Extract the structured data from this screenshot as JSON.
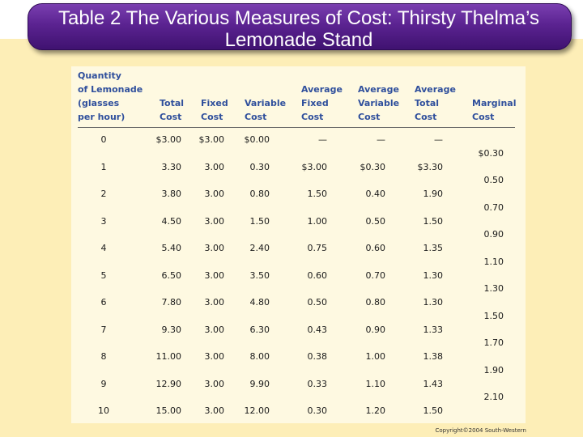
{
  "title": "Table 2 The Various Measures of Cost: Thirsty Thelma’s Lemonade Stand",
  "copyright": "Copyright©2004  South-Western",
  "headers": {
    "quantity": [
      "Quantity",
      "of Lemonade",
      "(glasses",
      "per hour)"
    ],
    "total_cost": [
      "Total",
      "Cost"
    ],
    "fixed_cost": [
      "Fixed",
      "Cost"
    ],
    "variable_cost": [
      "Variable",
      "Cost"
    ],
    "avg_fixed_cost": [
      "Average",
      "Fixed",
      "Cost"
    ],
    "avg_variable_cost": [
      "Average",
      "Variable",
      "Cost"
    ],
    "avg_total_cost": [
      "Average",
      "Total",
      "Cost"
    ],
    "marginal_cost": [
      "Marginal",
      "Cost"
    ]
  },
  "rows": [
    {
      "q": "0",
      "tc": "$3.00",
      "fc": "$3.00",
      "vc": "$0.00",
      "afc": "—",
      "avc": "—",
      "atc": "—"
    },
    {
      "q": "1",
      "tc": "3.30",
      "fc": "3.00",
      "vc": "0.30",
      "afc": "$3.00",
      "avc": "$0.30",
      "atc": "$3.30"
    },
    {
      "q": "2",
      "tc": "3.80",
      "fc": "3.00",
      "vc": "0.80",
      "afc": "1.50",
      "avc": "0.40",
      "atc": "1.90"
    },
    {
      "q": "3",
      "tc": "4.50",
      "fc": "3.00",
      "vc": "1.50",
      "afc": "1.00",
      "avc": "0.50",
      "atc": "1.50"
    },
    {
      "q": "4",
      "tc": "5.40",
      "fc": "3.00",
      "vc": "2.40",
      "afc": "0.75",
      "avc": "0.60",
      "atc": "1.35"
    },
    {
      "q": "5",
      "tc": "6.50",
      "fc": "3.00",
      "vc": "3.50",
      "afc": "0.60",
      "avc": "0.70",
      "atc": "1.30"
    },
    {
      "q": "6",
      "tc": "7.80",
      "fc": "3.00",
      "vc": "4.80",
      "afc": "0.50",
      "avc": "0.80",
      "atc": "1.30"
    },
    {
      "q": "7",
      "tc": "9.30",
      "fc": "3.00",
      "vc": "6.30",
      "afc": "0.43",
      "avc": "0.90",
      "atc": "1.33"
    },
    {
      "q": "8",
      "tc": "11.00",
      "fc": "3.00",
      "vc": "8.00",
      "afc": "0.38",
      "avc": "1.00",
      "atc": "1.38"
    },
    {
      "q": "9",
      "tc": "12.90",
      "fc": "3.00",
      "vc": "9.90",
      "afc": "0.33",
      "avc": "1.10",
      "atc": "1.43"
    },
    {
      "q": "10",
      "tc": "15.00",
      "fc": "3.00",
      "vc": "12.00",
      "afc": "0.30",
      "avc": "1.20",
      "atc": "1.50"
    }
  ],
  "marginal": [
    "$0.30",
    "0.50",
    "0.70",
    "0.90",
    "1.10",
    "1.30",
    "1.50",
    "1.70",
    "1.90",
    "2.10"
  ]
}
